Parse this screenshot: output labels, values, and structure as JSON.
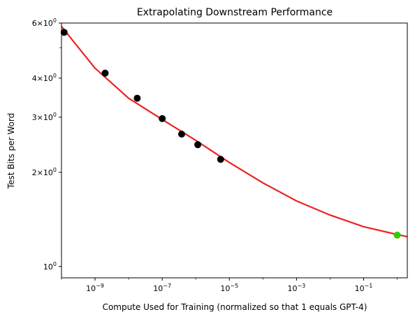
{
  "chart_data": {
    "type": "scatter",
    "title": "Extrapolating Downstream Performance",
    "xlabel": "Compute Used for Training (normalized so that 1 equals GPT-4)",
    "ylabel": "Test Bits per Word",
    "x_scale": "log",
    "y_scale": "log",
    "xlim": [
      1e-10,
      2
    ],
    "ylim": [
      0.92,
      6.0
    ],
    "grid": false,
    "x_ticks": [
      {
        "value": 1e-09,
        "base": "10",
        "exp": "−9"
      },
      {
        "value": 1e-07,
        "base": "10",
        "exp": "−7"
      },
      {
        "value": 1e-05,
        "base": "10",
        "exp": "−5"
      },
      {
        "value": 0.001,
        "base": "10",
        "exp": "−3"
      },
      {
        "value": 0.1,
        "base": "10",
        "exp": "−1"
      }
    ],
    "y_ticks": [
      {
        "value": 1,
        "mant": "",
        "base": "10",
        "exp": "0"
      },
      {
        "value": 2,
        "mant": "2×",
        "base": "10",
        "exp": "0"
      },
      {
        "value": 3,
        "mant": "3×",
        "base": "10",
        "exp": "0"
      },
      {
        "value": 4,
        "mant": "4×",
        "base": "10",
        "exp": "0"
      },
      {
        "value": 6,
        "mant": "6×",
        "base": "10",
        "exp": "0"
      }
    ],
    "y_minor_ticks": [
      5
    ],
    "series": [
      {
        "color": "#000000",
        "points": [
          {
            "x": 1.2e-10,
            "y": 5.6
          },
          {
            "x": 2e-09,
            "y": 4.15
          },
          {
            "x": 1.8e-08,
            "y": 3.45
          },
          {
            "x": 1e-07,
            "y": 2.97
          },
          {
            "x": 3.8e-07,
            "y": 2.65
          },
          {
            "x": 1.15e-06,
            "y": 2.45
          },
          {
            "x": 5.5e-06,
            "y": 2.2
          }
        ]
      },
      {
        "color": "#33cc00",
        "points": [
          {
            "x": 1.0,
            "y": 1.26
          }
        ]
      }
    ],
    "fit_line": {
      "color": "#ee2222",
      "x": [
        1e-10,
        1e-09,
        1e-08,
        1e-07,
        1e-06,
        1e-05,
        0.0001,
        0.001,
        0.01,
        0.1,
        1,
        2
      ],
      "y": [
        5.85,
        4.3,
        3.45,
        2.95,
        2.53,
        2.15,
        1.85,
        1.62,
        1.46,
        1.34,
        1.265,
        1.245
      ]
    }
  }
}
